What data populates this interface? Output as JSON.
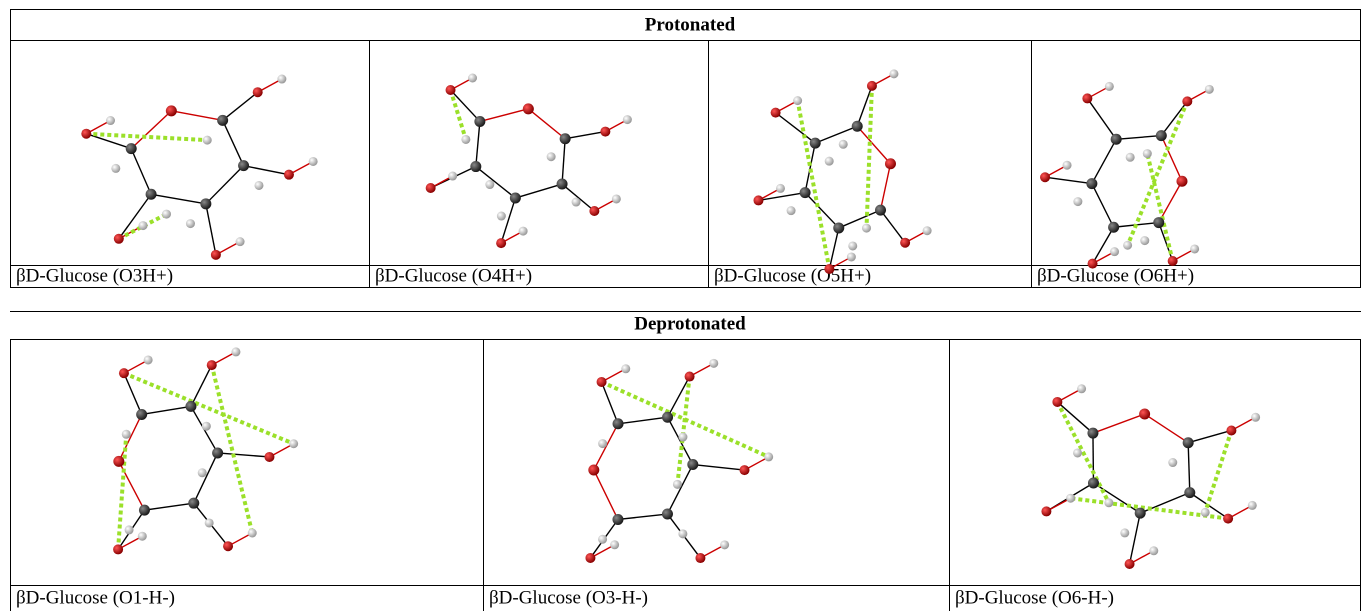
{
  "protonated": {
    "title": "Protonated",
    "labels": [
      "βD-Glucose (O3H+)",
      "βD-Glucose (O4H+)",
      "βD-Glucose (O5H+)",
      "βD-Glucose (O6H+)"
    ]
  },
  "deprotonated": {
    "title": "Deprotonated",
    "labels": [
      "βD-Glucose (O1-H-)",
      "βD-Glucose (O3-H-)",
      "βD-Glucose (O6-H-)"
    ]
  }
}
